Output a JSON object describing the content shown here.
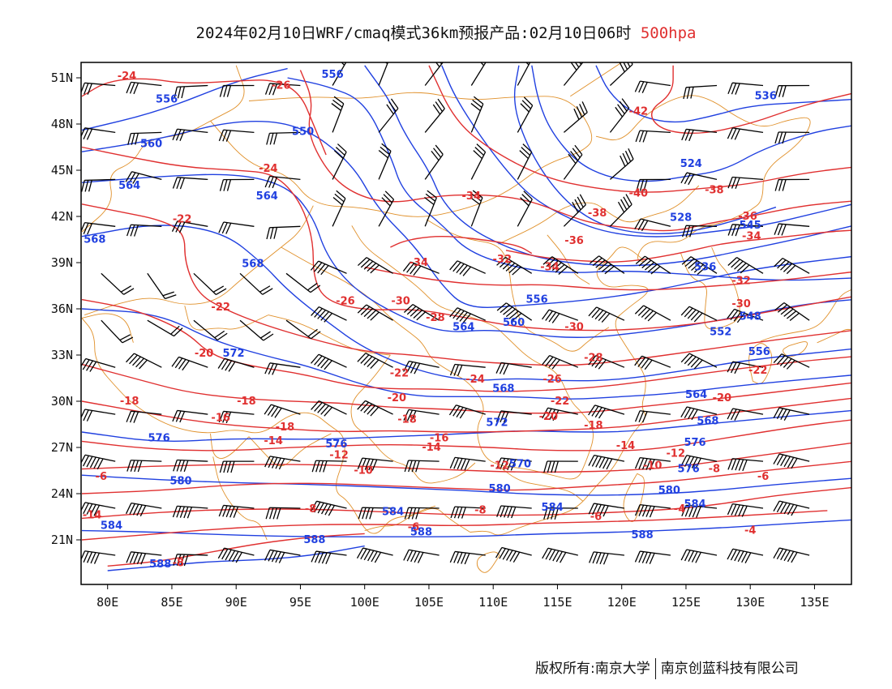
{
  "title": {
    "main": "2024年02月10日WRF/cmaq模式36km预报产品:02月10日06时",
    "level": "500hpa"
  },
  "axes": {
    "lat_ticks": [
      "51N",
      "48N",
      "45N",
      "42N",
      "39N",
      "36N",
      "33N",
      "30N",
      "27N",
      "24N",
      "21N"
    ],
    "lon_ticks": [
      "80E",
      "85E",
      "90E",
      "95E",
      "100E",
      "105E",
      "110E",
      "115E",
      "120E",
      "125E",
      "130E",
      "135E"
    ],
    "lat_values": [
      51,
      48,
      45,
      42,
      39,
      36,
      33,
      30,
      27,
      24,
      21
    ],
    "lon_values": [
      80,
      85,
      90,
      95,
      100,
      105,
      110,
      115,
      120,
      125,
      130,
      135
    ],
    "lon_range": [
      78,
      138
    ],
    "lat_range": [
      18,
      52
    ]
  },
  "colors": {
    "temperature": "#e03030",
    "height": "#2040e0",
    "boundary": "#e0902a",
    "wind": "#000000"
  },
  "temperature_labels": [
    {
      "text": "-24",
      "lon": 81.5,
      "lat": 50.9
    },
    {
      "text": "-26",
      "lon": 93.5,
      "lat": 50.3
    },
    {
      "text": "-42",
      "lon": 121.3,
      "lat": 48.6
    },
    {
      "text": "-24",
      "lon": 92.5,
      "lat": 44.9
    },
    {
      "text": "-34",
      "lon": 108.3,
      "lat": 43.1
    },
    {
      "text": "-40",
      "lon": 121.3,
      "lat": 43.3
    },
    {
      "text": "-38",
      "lon": 127.2,
      "lat": 43.5
    },
    {
      "text": "-22",
      "lon": 85.8,
      "lat": 41.6
    },
    {
      "text": "-38",
      "lon": 118.1,
      "lat": 42.0
    },
    {
      "text": "-36",
      "lon": 129.8,
      "lat": 41.8
    },
    {
      "text": "-34",
      "lon": 130.1,
      "lat": 40.5
    },
    {
      "text": "-36",
      "lon": 116.3,
      "lat": 40.2
    },
    {
      "text": "-34",
      "lon": 104.2,
      "lat": 38.8
    },
    {
      "text": "-32",
      "lon": 110.7,
      "lat": 39.0
    },
    {
      "text": "-34",
      "lon": 114.4,
      "lat": 38.5
    },
    {
      "text": "-32",
      "lon": 129.3,
      "lat": 37.6
    },
    {
      "text": "-30",
      "lon": 129.3,
      "lat": 36.1
    },
    {
      "text": "-22",
      "lon": 88.8,
      "lat": 35.9
    },
    {
      "text": "-26",
      "lon": 98.5,
      "lat": 36.3
    },
    {
      "text": "-30",
      "lon": 102.8,
      "lat": 36.3
    },
    {
      "text": "-28",
      "lon": 105.5,
      "lat": 35.2
    },
    {
      "text": "-30",
      "lon": 116.3,
      "lat": 34.6
    },
    {
      "text": "-20",
      "lon": 87.5,
      "lat": 32.9
    },
    {
      "text": "-28",
      "lon": 117.8,
      "lat": 32.6
    },
    {
      "text": "-22",
      "lon": 102.7,
      "lat": 31.6
    },
    {
      "text": "-24",
      "lon": 108.6,
      "lat": 31.2
    },
    {
      "text": "-26",
      "lon": 114.6,
      "lat": 31.2
    },
    {
      "text": "-22",
      "lon": 130.6,
      "lat": 31.8
    },
    {
      "text": "-18",
      "lon": 81.7,
      "lat": 29.8
    },
    {
      "text": "-18",
      "lon": 90.8,
      "lat": 29.8
    },
    {
      "text": "-20",
      "lon": 102.5,
      "lat": 30.0
    },
    {
      "text": "-22",
      "lon": 115.2,
      "lat": 29.8
    },
    {
      "text": "-20",
      "lon": 127.8,
      "lat": 30.0
    },
    {
      "text": "-16",
      "lon": 88.8,
      "lat": 28.7
    },
    {
      "text": "-18",
      "lon": 93.8,
      "lat": 28.1
    },
    {
      "text": "-18",
      "lon": 103.3,
      "lat": 28.6
    },
    {
      "text": "-20",
      "lon": 114.3,
      "lat": 28.8
    },
    {
      "text": "-18",
      "lon": 117.8,
      "lat": 28.2
    },
    {
      "text": "-14",
      "lon": 92.9,
      "lat": 27.2
    },
    {
      "text": "-16",
      "lon": 105.8,
      "lat": 27.4
    },
    {
      "text": "-14",
      "lon": 105.2,
      "lat": 26.8
    },
    {
      "text": "-14",
      "lon": 120.3,
      "lat": 26.9
    },
    {
      "text": "-12",
      "lon": 98.0,
      "lat": 26.3
    },
    {
      "text": "-12",
      "lon": 124.2,
      "lat": 26.4
    },
    {
      "text": "-10",
      "lon": 99.9,
      "lat": 25.3
    },
    {
      "text": "-12",
      "lon": 110.5,
      "lat": 25.6
    },
    {
      "text": "-10",
      "lon": 122.4,
      "lat": 25.6
    },
    {
      "text": "-8",
      "lon": 127.2,
      "lat": 25.4
    },
    {
      "text": "-6",
      "lon": 79.5,
      "lat": 24.9
    },
    {
      "text": "-8",
      "lon": 95.8,
      "lat": 22.8
    },
    {
      "text": "-8",
      "lon": 109.0,
      "lat": 22.7
    },
    {
      "text": "-6",
      "lon": 118.0,
      "lat": 22.3
    },
    {
      "text": "-4",
      "lon": 124.5,
      "lat": 22.8
    },
    {
      "text": "-6",
      "lon": 131.0,
      "lat": 24.9
    },
    {
      "text": "-14",
      "lon": 78.8,
      "lat": 22.4
    },
    {
      "text": "-6",
      "lon": 103.8,
      "lat": 21.6
    },
    {
      "text": "-4",
      "lon": 130.0,
      "lat": 21.4
    },
    {
      "text": "-8",
      "lon": 85.5,
      "lat": 19.3
    }
  ],
  "height_labels": [
    {
      "text": "556",
      "lon": 97.5,
      "lat": 51.0
    },
    {
      "text": "556",
      "lon": 84.6,
      "lat": 49.4
    },
    {
      "text": "536",
      "lon": 131.2,
      "lat": 49.6
    },
    {
      "text": "560",
      "lon": 83.4,
      "lat": 46.5
    },
    {
      "text": "550",
      "lon": 95.2,
      "lat": 47.3
    },
    {
      "text": "524",
      "lon": 125.4,
      "lat": 45.2
    },
    {
      "text": "564",
      "lon": 81.7,
      "lat": 43.8
    },
    {
      "text": "564",
      "lon": 92.4,
      "lat": 43.1
    },
    {
      "text": "528",
      "lon": 124.6,
      "lat": 41.7
    },
    {
      "text": "568",
      "lon": 79.0,
      "lat": 40.3
    },
    {
      "text": "545",
      "lon": 130.0,
      "lat": 41.2
    },
    {
      "text": "568",
      "lon": 91.3,
      "lat": 38.7
    },
    {
      "text": "536",
      "lon": 126.5,
      "lat": 38.5
    },
    {
      "text": "556",
      "lon": 113.4,
      "lat": 36.4
    },
    {
      "text": "548",
      "lon": 130.0,
      "lat": 35.3
    },
    {
      "text": "564",
      "lon": 107.7,
      "lat": 34.6
    },
    {
      "text": "560",
      "lon": 111.6,
      "lat": 34.9
    },
    {
      "text": "552",
      "lon": 127.7,
      "lat": 34.3
    },
    {
      "text": "572",
      "lon": 89.8,
      "lat": 32.9
    },
    {
      "text": "556",
      "lon": 130.7,
      "lat": 33.0
    },
    {
      "text": "568",
      "lon": 110.8,
      "lat": 30.6
    },
    {
      "text": "564",
      "lon": 125.8,
      "lat": 30.2
    },
    {
      "text": "572",
      "lon": 110.3,
      "lat": 28.4
    },
    {
      "text": "568",
      "lon": 126.7,
      "lat": 28.5
    },
    {
      "text": "576",
      "lon": 84.0,
      "lat": 27.4
    },
    {
      "text": "576",
      "lon": 97.8,
      "lat": 27.0
    },
    {
      "text": "576",
      "lon": 125.7,
      "lat": 27.1
    },
    {
      "text": "570",
      "lon": 112.1,
      "lat": 25.7
    },
    {
      "text": "576",
      "lon": 125.2,
      "lat": 25.4
    },
    {
      "text": "580",
      "lon": 85.7,
      "lat": 24.6
    },
    {
      "text": "580",
      "lon": 110.5,
      "lat": 24.1
    },
    {
      "text": "580",
      "lon": 123.7,
      "lat": 24.0
    },
    {
      "text": "584",
      "lon": 102.2,
      "lat": 22.6
    },
    {
      "text": "584",
      "lon": 114.6,
      "lat": 22.9
    },
    {
      "text": "584",
      "lon": 125.7,
      "lat": 23.1
    },
    {
      "text": "584",
      "lon": 80.3,
      "lat": 21.7
    },
    {
      "text": "588",
      "lon": 96.1,
      "lat": 20.8
    },
    {
      "text": "588",
      "lon": 104.4,
      "lat": 21.3
    },
    {
      "text": "588",
      "lon": 121.6,
      "lat": 21.1
    },
    {
      "text": "588",
      "lon": 84.1,
      "lat": 19.2
    }
  ],
  "footer": {
    "left": "版权所有:南京大学",
    "right": "南京创蓝科技有限公司"
  }
}
